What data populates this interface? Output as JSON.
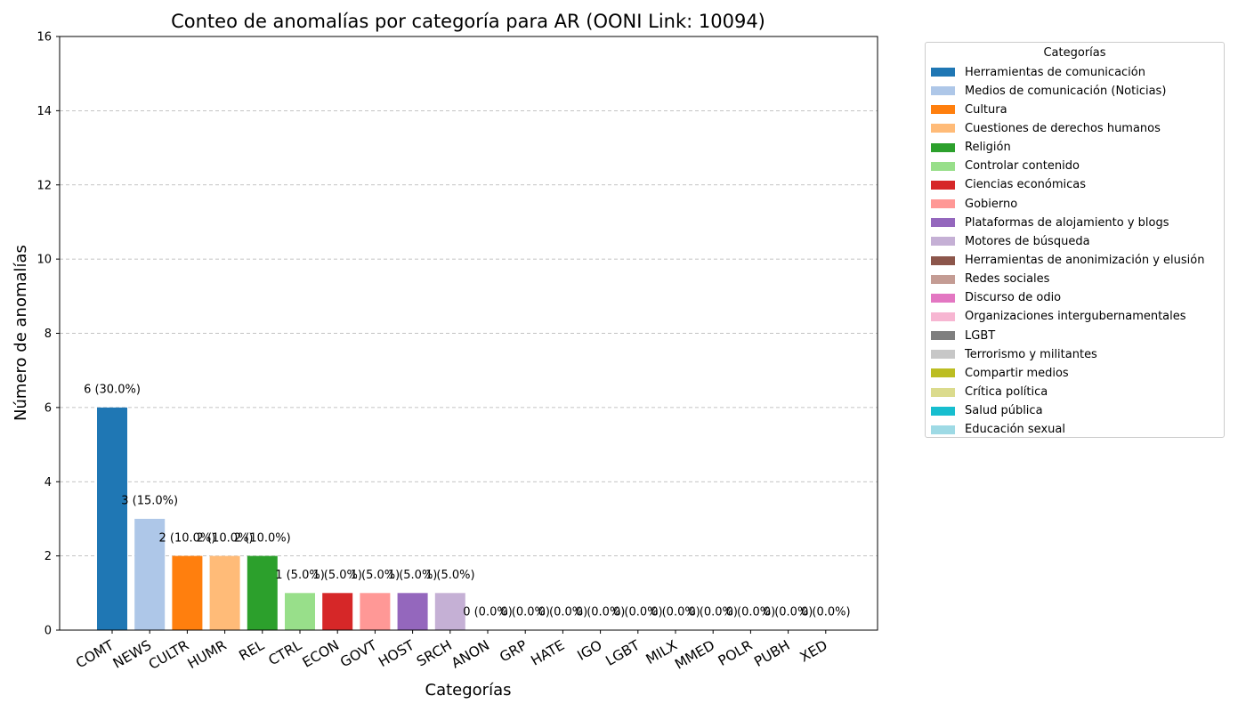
{
  "chart_data": {
    "type": "bar",
    "title": "Conteo de anomalías por categoría para AR (OONI Link: 10094)",
    "xlabel": "Categorías",
    "ylabel": "Número de anomalías",
    "ylim": [
      0,
      16
    ],
    "yticks": [
      "0",
      "2",
      "4",
      "6",
      "8",
      "10",
      "12",
      "14",
      "16"
    ],
    "grid": "y-dashed",
    "categories": [
      "COMT",
      "NEWS",
      "CULTR",
      "HUMR",
      "REL",
      "CTRL",
      "ECON",
      "GOVT",
      "HOST",
      "SRCH",
      "ANON",
      "GRP",
      "HATE",
      "IGO",
      "LGBT",
      "MILX",
      "MMED",
      "POLR",
      "PUBH",
      "XED"
    ],
    "values": [
      6,
      3,
      2,
      2,
      2,
      1,
      1,
      1,
      1,
      1,
      0,
      0,
      0,
      0,
      0,
      0,
      0,
      0,
      0,
      0
    ],
    "data_labels": [
      "6 (30.0%)",
      "3 (15.0%)",
      "2 (10.0%)",
      "2 (10.0%)",
      "2 (10.0%)",
      "1 (5.0%)",
      "1 (5.0%)",
      "1 (5.0%)",
      "1 (5.0%)",
      "1 (5.0%)",
      "0 (0.0%)",
      "0 (0.0%)",
      "0 (0.0%)",
      "0 (0.0%)",
      "0 (0.0%)",
      "0 (0.0%)",
      "0 (0.0%)",
      "0 (0.0%)",
      "0 (0.0%)",
      "0 (0.0%)"
    ],
    "colors": [
      "#1f77b4",
      "#aec7e8",
      "#ff7f0e",
      "#ffbb78",
      "#2ca02c",
      "#98df8a",
      "#d62728",
      "#ff9896",
      "#9467bd",
      "#c5b0d5",
      "#8c564b",
      "#c49c94",
      "#e377c2",
      "#f7b6d2",
      "#7f7f7f",
      "#c7c7c7",
      "#bcbd22",
      "#dbdb8d",
      "#17becf",
      "#9edae5"
    ],
    "legend": {
      "title": "Categorías",
      "placement": "outside-right-top",
      "entries": [
        "Herramientas de comunicación",
        "Medios de comunicación (Noticias)",
        "Cultura",
        "Cuestiones de derechos humanos",
        "Religión",
        "Controlar contenido",
        "Ciencias económicas",
        "Gobierno",
        "Plataformas de alojamiento y blogs",
        "Motores de búsqueda",
        "Herramientas de anonimización y elusión",
        "Redes sociales",
        "Discurso de odio",
        "Organizaciones intergubernamentales",
        "LGBT",
        "Terrorismo y militantes",
        "Compartir medios",
        "Crítica política",
        "Salud pública",
        "Educación sexual"
      ]
    }
  }
}
